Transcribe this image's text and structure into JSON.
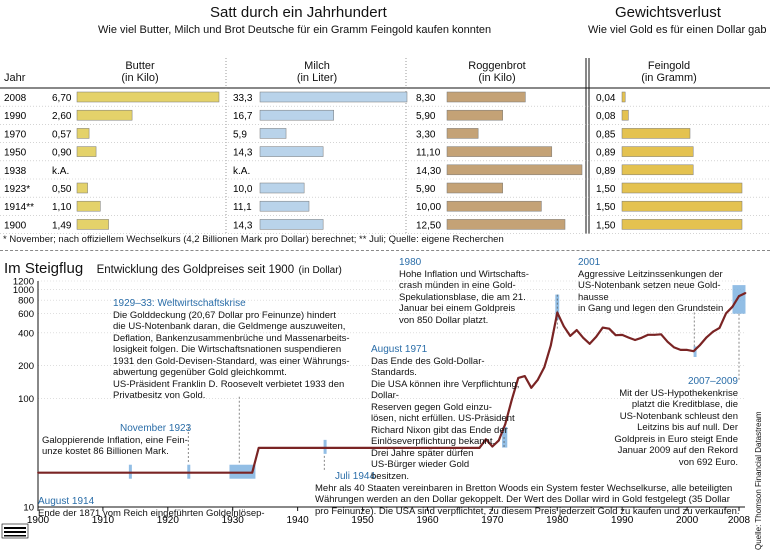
{
  "top": {
    "title": "Satt durch ein Jahrhundert",
    "subtitle": "Wie viel Butter, Milch und Brot Deutsche für ein Gramm Feingold kaufen konnten",
    "title2": "Gewichtsverlust",
    "subtitle2": "Wie viel Gold es für einen Dollar gab",
    "col_year": "Jahr",
    "col_butter": "Butter",
    "col_butter_unit": "(in Kilo)",
    "col_milk": "Milch",
    "col_milk_unit": "(in Liter)",
    "col_bread": "Roggenbrot",
    "col_bread_unit": "(in Kilo)",
    "col_gold": "Feingold",
    "col_gold_unit": "(in Gramm)",
    "footnote": "* November; nach offiziellem Wechselkurs (4,2 Billionen Mark pro Dollar) berechnet; ** Juli; Quelle: eigene Recherchen"
  },
  "table": {
    "years": [
      "2008",
      "1990",
      "1970",
      "1950",
      "1938",
      "1923*",
      "1914**",
      "1900"
    ],
    "butter_labels": [
      "6,70",
      "2,60",
      "0,57",
      "0,90",
      "k.A.",
      "0,50",
      "1,10",
      "1,49"
    ],
    "butter": [
      6.7,
      2.6,
      0.57,
      0.9,
      null,
      0.5,
      1.1,
      1.49
    ],
    "milk_labels": [
      "33,3",
      "16,7",
      "5,9",
      "14,3",
      "k.A.",
      "10,0",
      "11,1",
      "14,3"
    ],
    "milk": [
      33.3,
      16.7,
      5.9,
      14.3,
      null,
      10.0,
      11.1,
      14.3
    ],
    "bread_labels": [
      "8,30",
      "5,90",
      "3,30",
      "11,10",
      "14,30",
      "5,90",
      "10,00",
      "12,50"
    ],
    "bread": [
      8.3,
      5.9,
      3.3,
      11.1,
      14.3,
      5.9,
      10.0,
      12.5
    ],
    "gold_labels": [
      "0,04",
      "0,08",
      "0,85",
      "0,89",
      "0,89",
      "1,50",
      "1,50",
      "1,50"
    ],
    "gold": [
      0.04,
      0.08,
      0.85,
      0.89,
      0.89,
      1.5,
      1.5,
      1.5
    ],
    "colors": {
      "butter": "#e4d26a",
      "milk": "#b9d3ea",
      "bread": "#c4a276",
      "gold": "#e4c250"
    }
  },
  "chart_header": {
    "title": "Im Steigflug",
    "subtitle": "Entwicklung des Goldpreises seit 1900",
    "unit": "(in Dollar)",
    "source": "Quelle: Thomson Financial Datastream"
  },
  "chart_data": {
    "type": "line",
    "title": "Entwicklung des Goldpreises seit 1900",
    "ylabel": "(in Dollar)",
    "yscale": "log",
    "ylim": [
      10,
      1200
    ],
    "xlim": [
      1900,
      2010
    ],
    "y_ticks": [
      10,
      100,
      200,
      400,
      600,
      800,
      1000,
      1200
    ],
    "x_ticks": [
      1900,
      1910,
      1920,
      1930,
      1940,
      1950,
      1960,
      1970,
      1980,
      1990,
      2000,
      2008
    ],
    "line_color": "#7a2424",
    "x": [
      1900,
      1933,
      1934,
      1968,
      1969,
      1970,
      1971,
      1972,
      1973,
      1974,
      1975,
      1976,
      1977,
      1978,
      1979,
      1980,
      1981,
      1982,
      1983,
      1984,
      1985,
      1986,
      1987,
      1988,
      1989,
      1990,
      1991,
      1992,
      1993,
      1994,
      1995,
      1996,
      1997,
      1998,
      1999,
      2000,
      2001,
      2002,
      2003,
      2004,
      2005,
      2006,
      2007,
      2008,
      2009
    ],
    "y": [
      20.67,
      20.67,
      35,
      35,
      42,
      36,
      41,
      58,
      97,
      154,
      160,
      125,
      148,
      193,
      307,
      615,
      460,
      375,
      424,
      360,
      317,
      368,
      447,
      437,
      381,
      383,
      362,
      344,
      360,
      384,
      384,
      388,
      331,
      294,
      279,
      279,
      271,
      310,
      363,
      410,
      444,
      604,
      696,
      872,
      930
    ],
    "highlight_years": [
      1914,
      1923,
      1931,
      1944,
      1971,
      1980,
      2001,
      2008
    ],
    "annotations": [
      {
        "heading": "August 1914",
        "text": [
          "Ende der 1871 vom Reich eingeführten Goldeinlösep-"
        ]
      },
      {
        "heading": "November 1923",
        "text": [
          "Galoppierende Inflation, eine Fein-",
          "unze kostet 86 Billionen Mark."
        ]
      },
      {
        "heading": "1929–33: Weltwirtschaftskrise",
        "text": [
          "Die Golddeckung (20,67 Dollar pro Feinunze) hindert",
          "die US-Notenbank daran, die Geldmenge auszuweiten,",
          "Deflation, Bankenzusammenbrüche und Massenarbeits-",
          "losigkeit folgen. Die Wirtschaftsnationen suspendieren",
          "1931 den Gold-Devisen-Standard, was einer Währungs-",
          "abwertung gegenüber Gold gleichkommt.",
          "US-Präsident Franklin D. Roosevelt verbietet 1933 den",
          "Privatbesitz von Gold."
        ]
      },
      {
        "heading": "Juli 1944",
        "text": [
          "Mehr als 40 Staaten vereinbaren in Bretton Woods ein System fester Wechselkurse,  alle beteiligten",
          "Währungen werden an den Dollar gekoppelt. Der Wert des Dollar wird in Gold festgelegt (35 Dollar",
          "pro Feinunze). Die USA sind verpflichtet, zu diesem Preis jederzeit Gold zu kaufen und zu verkaufen."
        ]
      },
      {
        "heading": "August 1971",
        "text": [
          "Das Ende des Gold-Dollar-Standards.",
          "Die USA können ihre Verpflichtung, Dollar-",
          "Reserven gegen Gold einzu-",
          "lösen, nicht erfüllen. US-Präsident",
          "Richard Nixon gibt das Ende der",
          "Einlöseverpflichtung bekannt.",
          "Drei Jahre später dürfen",
          "US-Bürger wieder Gold",
          "besitzen."
        ]
      },
      {
        "heading": "1980",
        "text": [
          "Hohe Inflation und Wirtschafts-",
          "crash münden in eine Gold-",
          "Spekulationsblase, die am 21.",
          "Januar bei einem Goldpreis",
          "von 850 Dollar platzt."
        ]
      },
      {
        "heading": "2001",
        "text": [
          "Aggressive Leitzinssenkungen der",
          "US-Notenbank setzen neue Gold-",
          "hausse",
          "in Gang und legen den Grundstein"
        ]
      },
      {
        "heading": "2007–2009",
        "text": [
          "Mit der US-Hypothekenkrise",
          "platzt die Kreditblase, die",
          "US-Notenbank schleust den",
          "Leitzins bis auf null. Der",
          "Goldpreis in Euro steigt Ende",
          "Januar 2009 auf den Rekord",
          "von 692 Euro."
        ]
      }
    ]
  }
}
